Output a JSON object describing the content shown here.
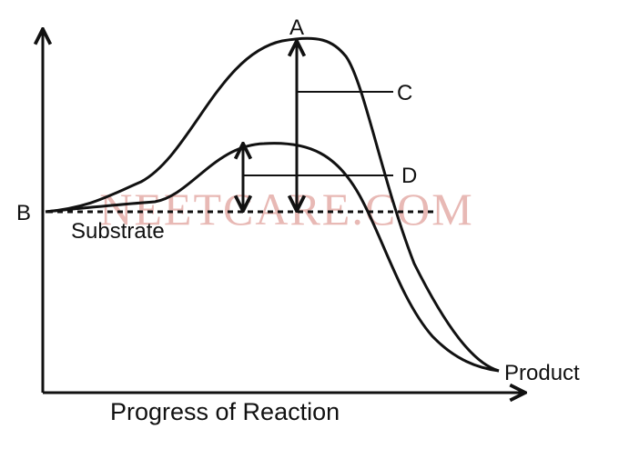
{
  "diagram": {
    "labels": {
      "peak_high": "A",
      "start": "B",
      "energy_high": "C",
      "energy_low": "D",
      "substrate": "Substrate",
      "product": "Product",
      "x_axis": "Progress of Reaction"
    },
    "watermark": "NEETCARE.COM",
    "colors": {
      "line": "#111111",
      "watermark": "#e8b9b5",
      "background": "#ffffff"
    }
  }
}
